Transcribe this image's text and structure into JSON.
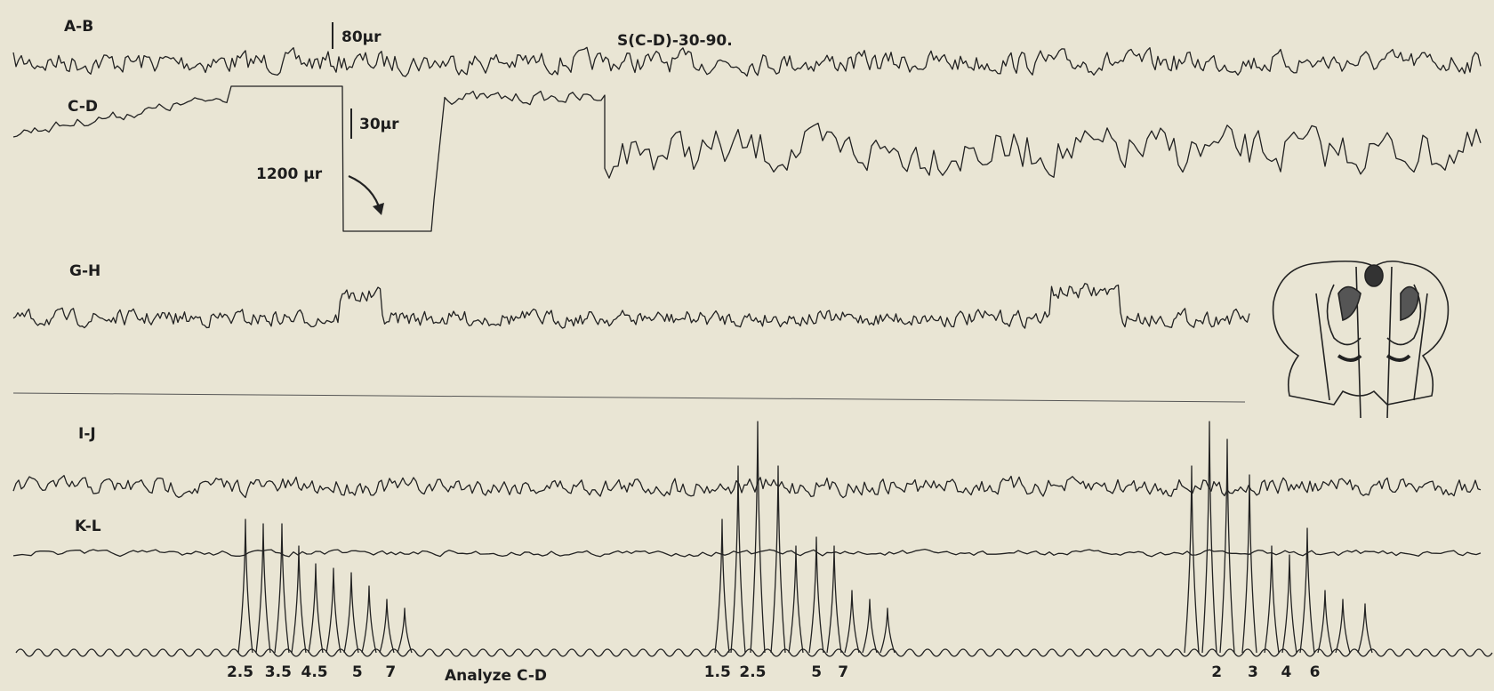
{
  "figure": {
    "channels": [
      "A-B",
      "C-D",
      "G-H",
      "I-J",
      "K-L"
    ],
    "calibrations": {
      "ab": "80µr",
      "cd": "30µr",
      "big": "1200 µr"
    },
    "stimulus": "S(C-D)-30-90.",
    "analyzer_label": "Analyze C-D",
    "analyzer_groups": [
      [
        "2.5",
        "3.5",
        "4.5",
        "5",
        "7"
      ],
      [
        "1.5",
        "2.5",
        "5",
        "7"
      ],
      [
        "2",
        "3",
        "4",
        "6"
      ]
    ]
  }
}
